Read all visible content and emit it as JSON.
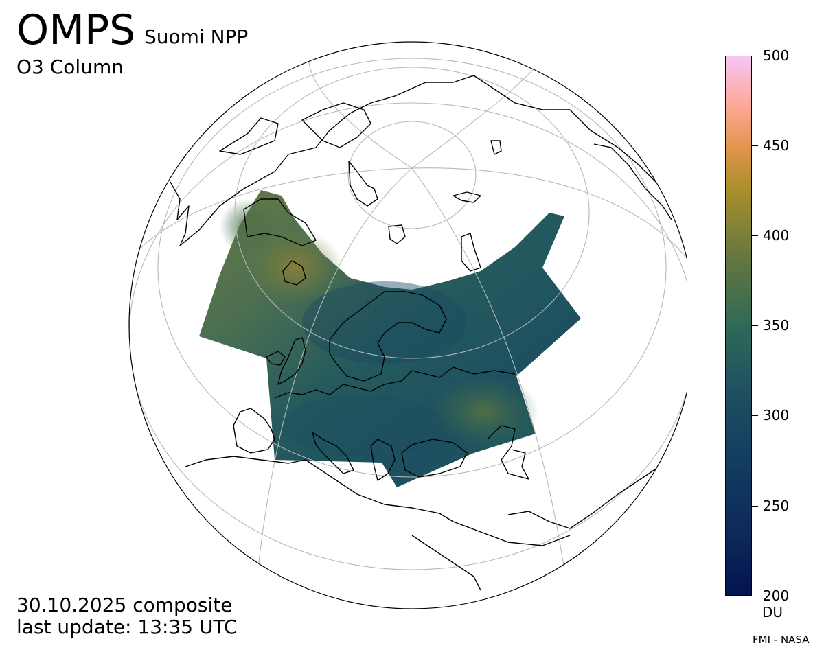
{
  "header": {
    "instrument": "OMPS",
    "satellite": "Suomi NPP",
    "parameter": "O3 Column"
  },
  "footer": {
    "date": "30.10.2025 composite",
    "update": "last update: 13:35 UTC",
    "credit": "FMI - NASA"
  },
  "colorbar": {
    "unit": "DU",
    "ticks": [
      "500",
      "450",
      "400",
      "350",
      "300",
      "250",
      "200"
    ],
    "range": [
      200,
      500
    ],
    "colors": [
      "#03144f",
      "#123d60",
      "#2f6a58",
      "#627640",
      "#a88f2b",
      "#e2944c",
      "#fda999",
      "#f6c6f5"
    ]
  },
  "map": {
    "projection": "orthographic",
    "graticule": true,
    "data_region": "Europe and northern Atlantic"
  }
}
